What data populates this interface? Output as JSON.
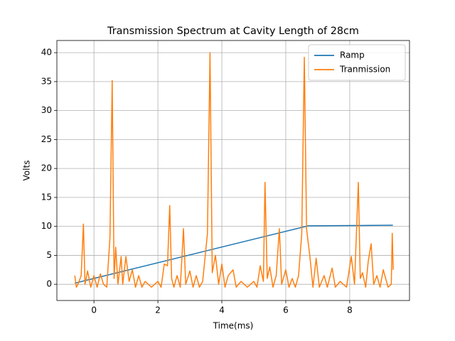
{
  "chart_data": {
    "type": "line",
    "title": "Transmission Spectrum at Cavity Length of 28cm",
    "x_label": "Time(ms)",
    "y_label": "Volts",
    "xlim": [
      -1.16,
      9.87
    ],
    "ylim": [
      -2.8,
      42.1
    ],
    "xticks": [
      0,
      2,
      4,
      6,
      8
    ],
    "yticks": [
      0,
      5,
      10,
      15,
      20,
      25,
      30,
      35,
      40
    ],
    "grid": true,
    "legend": "upper-right",
    "series": [
      {
        "name": "Ramp",
        "color": "#1f77b4",
        "x": [
          -0.6,
          6.7,
          9.35
        ],
        "values": [
          0.2,
          10.1,
          10.2
        ]
      },
      {
        "name": "Tranmission",
        "color": "#ff7f0e",
        "x": [
          -0.6,
          -0.55,
          -0.5,
          -0.4,
          -0.33,
          -0.28,
          -0.2,
          -0.1,
          0,
          0.1,
          0.2,
          0.3,
          0.4,
          0.5,
          0.57,
          0.63,
          0.68,
          0.75,
          0.85,
          0.9,
          1.0,
          1.1,
          1.2,
          1.3,
          1.4,
          1.5,
          1.6,
          1.8,
          2.0,
          2.1,
          2.2,
          2.3,
          2.37,
          2.43,
          2.5,
          2.6,
          2.7,
          2.8,
          2.87,
          3.0,
          3.1,
          3.2,
          3.3,
          3.4,
          3.55,
          3.63,
          3.7,
          3.8,
          3.9,
          4.0,
          4.1,
          4.2,
          4.35,
          4.45,
          4.6,
          4.8,
          5.0,
          5.1,
          5.2,
          5.3,
          5.35,
          5.42,
          5.5,
          5.6,
          5.7,
          5.8,
          5.87,
          6.0,
          6.1,
          6.2,
          6.3,
          6.4,
          6.5,
          6.58,
          6.65,
          6.75,
          6.85,
          6.95,
          7.05,
          7.2,
          7.3,
          7.45,
          7.55,
          7.7,
          7.9,
          8.05,
          8.15,
          8.27,
          8.33,
          8.4,
          8.5,
          8.58,
          8.67,
          8.75,
          8.85,
          8.95,
          9.05,
          9.2,
          9.3,
          9.33,
          9.36
        ],
        "values": [
          1.5,
          -0.5,
          0,
          1.5,
          10.4,
          0,
          2.3,
          -0.5,
          1.5,
          -0.5,
          1.8,
          0,
          -0.5,
          8,
          35.2,
          1,
          6.4,
          0,
          4.8,
          0,
          4.8,
          0.5,
          2.5,
          -0.5,
          1.5,
          -0.5,
          0.5,
          -0.5,
          0.5,
          -0.5,
          3.5,
          3.2,
          13.6,
          1,
          -0.5,
          1.5,
          -0.5,
          9.6,
          0,
          2.3,
          -0.5,
          1.5,
          -0.5,
          0.5,
          8.8,
          40,
          2,
          5,
          0,
          3.5,
          -0.5,
          1.5,
          2.5,
          -0.5,
          0.5,
          -0.5,
          0.5,
          -0.5,
          3.2,
          0.5,
          17.6,
          1,
          3,
          -0.5,
          1.5,
          9.6,
          0,
          2.5,
          -0.5,
          1,
          -0.5,
          1.5,
          8.8,
          39.2,
          9.6,
          5,
          -0.5,
          4.5,
          -0.5,
          1.5,
          -0.5,
          2.8,
          -0.5,
          0.5,
          -0.5,
          4.8,
          0,
          17.6,
          1,
          2,
          -0.5,
          4,
          7,
          0,
          1.5,
          -0.5,
          2.5,
          -0.5,
          0,
          8.8,
          2.5
        ]
      }
    ]
  }
}
